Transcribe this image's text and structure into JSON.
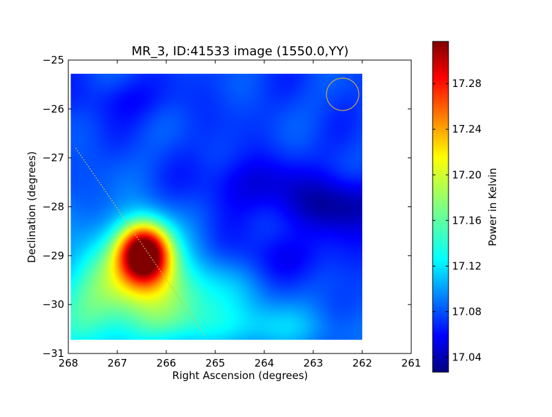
{
  "chart_data": {
    "type": "heatmap",
    "title": "MR_3, ID:41533 image (1550.0,YY)",
    "xlabel": "Right Ascension (degrees)",
    "ylabel": "Declination (degrees)",
    "colorbar_label": "Power in Kelvin",
    "xlim": [
      268,
      261
    ],
    "ylim": [
      -31,
      -25
    ],
    "x_ticks": [
      {
        "value": 268,
        "label": "268"
      },
      {
        "value": 267,
        "label": "267"
      },
      {
        "value": 266,
        "label": "266"
      },
      {
        "value": 265,
        "label": "265"
      },
      {
        "value": 264,
        "label": "264"
      },
      {
        "value": 263,
        "label": "263"
      },
      {
        "value": 262,
        "label": "262"
      },
      {
        "value": 261,
        "label": "261"
      }
    ],
    "y_ticks": [
      {
        "value": -25,
        "label": "−25"
      },
      {
        "value": -26,
        "label": "−26"
      },
      {
        "value": -27,
        "label": "−27"
      },
      {
        "value": -28,
        "label": "−28"
      },
      {
        "value": -29,
        "label": "−29"
      },
      {
        "value": -30,
        "label": "−30"
      },
      {
        "value": -31,
        "label": "−31"
      }
    ],
    "image_extent": {
      "ra_min": 262.0,
      "ra_max": 267.95,
      "dec_min": -30.72,
      "dec_max": -25.28
    },
    "colorbar": {
      "vmin": 17.027,
      "vmax": 17.317,
      "ticks": [
        {
          "value": 17.04,
          "label": "17.04"
        },
        {
          "value": 17.08,
          "label": "17.08"
        },
        {
          "value": 17.12,
          "label": "17.12"
        },
        {
          "value": 17.16,
          "label": "17.16"
        },
        {
          "value": 17.2,
          "label": "17.20"
        },
        {
          "value": 17.24,
          "label": "17.24"
        },
        {
          "value": 17.28,
          "label": "17.28"
        }
      ]
    },
    "colormap": "jet",
    "grid": false,
    "beam_circle": {
      "ra": 262.4,
      "dec": -25.7,
      "radius_deg": 0.33,
      "color": "#c9a84a"
    },
    "dotted_line": {
      "ra": [
        267.85,
        265.2
      ],
      "dec": [
        -26.8,
        -30.65
      ],
      "color": "#d4c24a"
    },
    "field": {
      "background": 17.082,
      "sources": [
        {
          "ra": 266.45,
          "dec": -28.95,
          "amp": 0.235,
          "sigma_ra": 0.36,
          "sigma_dec": 0.42
        },
        {
          "ra": 266.2,
          "dec": -29.5,
          "amp": 0.05,
          "sigma_ra": 0.9,
          "sigma_dec": 0.6
        },
        {
          "ra": 267.0,
          "dec": -29.6,
          "amp": 0.045,
          "sigma_ra": 0.9,
          "sigma_dec": 1.1
        },
        {
          "ra": 265.3,
          "dec": -30.0,
          "amp": 0.035,
          "sigma_ra": 1.1,
          "sigma_dec": 0.55
        },
        {
          "ra": 267.9,
          "dec": -30.2,
          "amp": 0.035,
          "sigma_ra": 0.7,
          "sigma_dec": 0.8
        },
        {
          "ra": 264.2,
          "dec": -30.5,
          "amp": 0.03,
          "sigma_ra": 1.6,
          "sigma_dec": 0.35
        },
        {
          "ra": 262.5,
          "dec": -27.95,
          "amp": -0.045,
          "sigma_ra": 0.8,
          "sigma_dec": 0.4
        },
        {
          "ra": 264.3,
          "dec": -27.5,
          "amp": -0.025,
          "sigma_ra": 0.8,
          "sigma_dec": 0.4
        },
        {
          "ra": 263.8,
          "dec": -29.0,
          "amp": -0.018,
          "sigma_ra": 1.2,
          "sigma_dec": 0.4
        },
        {
          "ra": 266.8,
          "dec": -25.8,
          "amp": -0.015,
          "sigma_ra": 0.7,
          "sigma_dec": 0.3
        }
      ]
    }
  }
}
